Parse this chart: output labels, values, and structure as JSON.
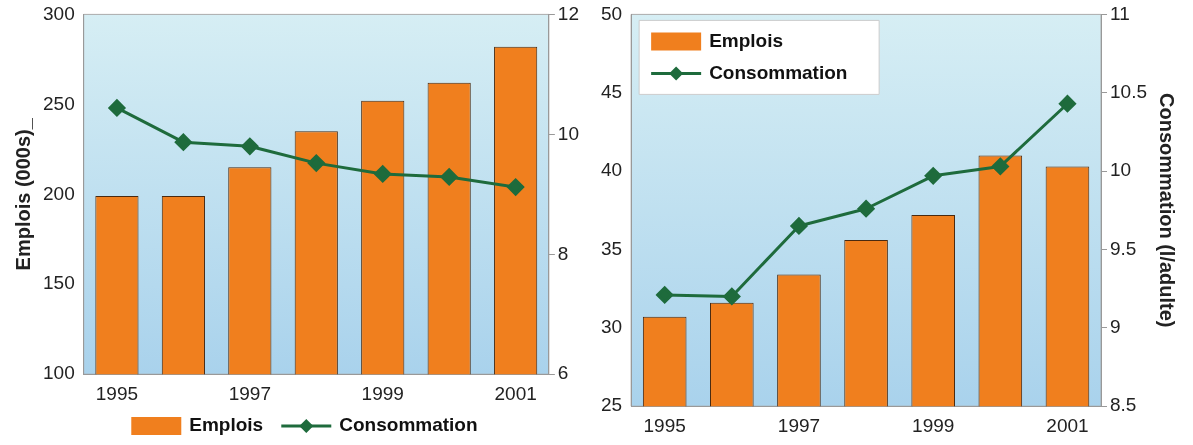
{
  "chart_data": [
    {
      "type": "bar",
      "ylabel": "Emplois (000s)_",
      "categories": [
        "1995",
        null,
        "1997",
        null,
        "1999",
        null,
        "2001"
      ],
      "series": [
        {
          "name": "Emplois",
          "color": "#f07f1e",
          "values": [
            199,
            199,
            215,
            235,
            252,
            262,
            282
          ]
        },
        {
          "name": "Consommation",
          "type": "line",
          "axis": "y2",
          "color": "#1e6b3c",
          "values": [
            10.44,
            9.87,
            9.8,
            9.52,
            9.34,
            9.29,
            9.12
          ]
        }
      ],
      "ylim": [
        100,
        300
      ],
      "yticks": [
        100,
        150,
        200,
        250,
        300
      ],
      "y2lim": [
        6,
        12
      ],
      "y2ticks": [
        6,
        8,
        10,
        12
      ],
      "legend": "bottom",
      "marker": "diamond",
      "grid": false
    },
    {
      "type": "bar",
      "y2label": "Consommation (l/adulte)",
      "categories": [
        "1995",
        null,
        "1997",
        null,
        "1999",
        null,
        "2001"
      ],
      "series": [
        {
          "name": "Emplois",
          "color": "#f07f1e",
          "values": [
            30.7,
            31.6,
            33.4,
            35.6,
            37.2,
            41.0,
            40.3
          ]
        },
        {
          "name": "Consommation",
          "type": "line",
          "axis": "y2",
          "color": "#1e6b3c",
          "values": [
            9.21,
            9.2,
            9.65,
            9.76,
            9.97,
            10.03,
            10.43
          ]
        }
      ],
      "ylim": [
        25,
        50
      ],
      "yticks": [
        25,
        30,
        35,
        40,
        45,
        50
      ],
      "y2lim": [
        8.5,
        11
      ],
      "y2ticks": [
        8.5,
        9,
        9.5,
        10,
        10.5,
        11
      ],
      "legend": "top left",
      "marker": "diamond",
      "grid": false
    }
  ]
}
